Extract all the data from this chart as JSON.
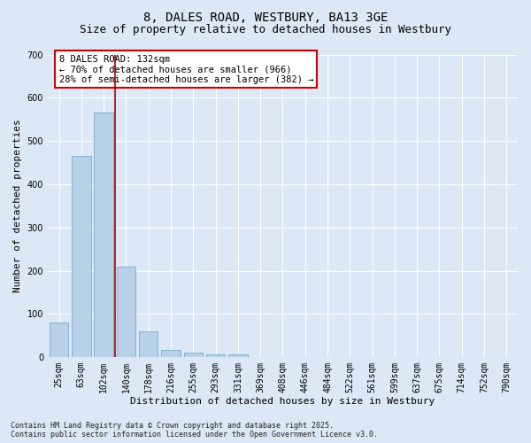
{
  "title_line1": "8, DALES ROAD, WESTBURY, BA13 3GE",
  "title_line2": "Size of property relative to detached houses in Westbury",
  "xlabel": "Distribution of detached houses by size in Westbury",
  "ylabel": "Number of detached properties",
  "categories": [
    "25sqm",
    "63sqm",
    "102sqm",
    "140sqm",
    "178sqm",
    "216sqm",
    "255sqm",
    "293sqm",
    "331sqm",
    "369sqm",
    "408sqm",
    "446sqm",
    "484sqm",
    "522sqm",
    "561sqm",
    "599sqm",
    "637sqm",
    "675sqm",
    "714sqm",
    "752sqm",
    "790sqm"
  ],
  "values": [
    80,
    465,
    565,
    210,
    60,
    16,
    10,
    7,
    7,
    0,
    0,
    0,
    0,
    0,
    0,
    0,
    0,
    0,
    0,
    0,
    0
  ],
  "bar_color": "#b8d0e8",
  "bar_edge_color": "#7aaac8",
  "vline_x_idx": 2,
  "vline_color": "#aa0000",
  "annotation_text": "8 DALES ROAD: 132sqm\n← 70% of detached houses are smaller (966)\n28% of semi-detached houses are larger (382) →",
  "annotation_box_color": "#cc0000",
  "ylim": [
    0,
    700
  ],
  "yticks": [
    0,
    100,
    200,
    300,
    400,
    500,
    600,
    700
  ],
  "background_color": "#dce8f5",
  "plot_bg_color": "#dce8f5",
  "footer_line1": "Contains HM Land Registry data © Crown copyright and database right 2025.",
  "footer_line2": "Contains public sector information licensed under the Open Government Licence v3.0.",
  "grid_color": "#ffffff",
  "title_fontsize": 10,
  "subtitle_fontsize": 9,
  "axis_label_fontsize": 8,
  "tick_fontsize": 7,
  "annotation_fontsize": 7.5,
  "footer_fontsize": 6
}
